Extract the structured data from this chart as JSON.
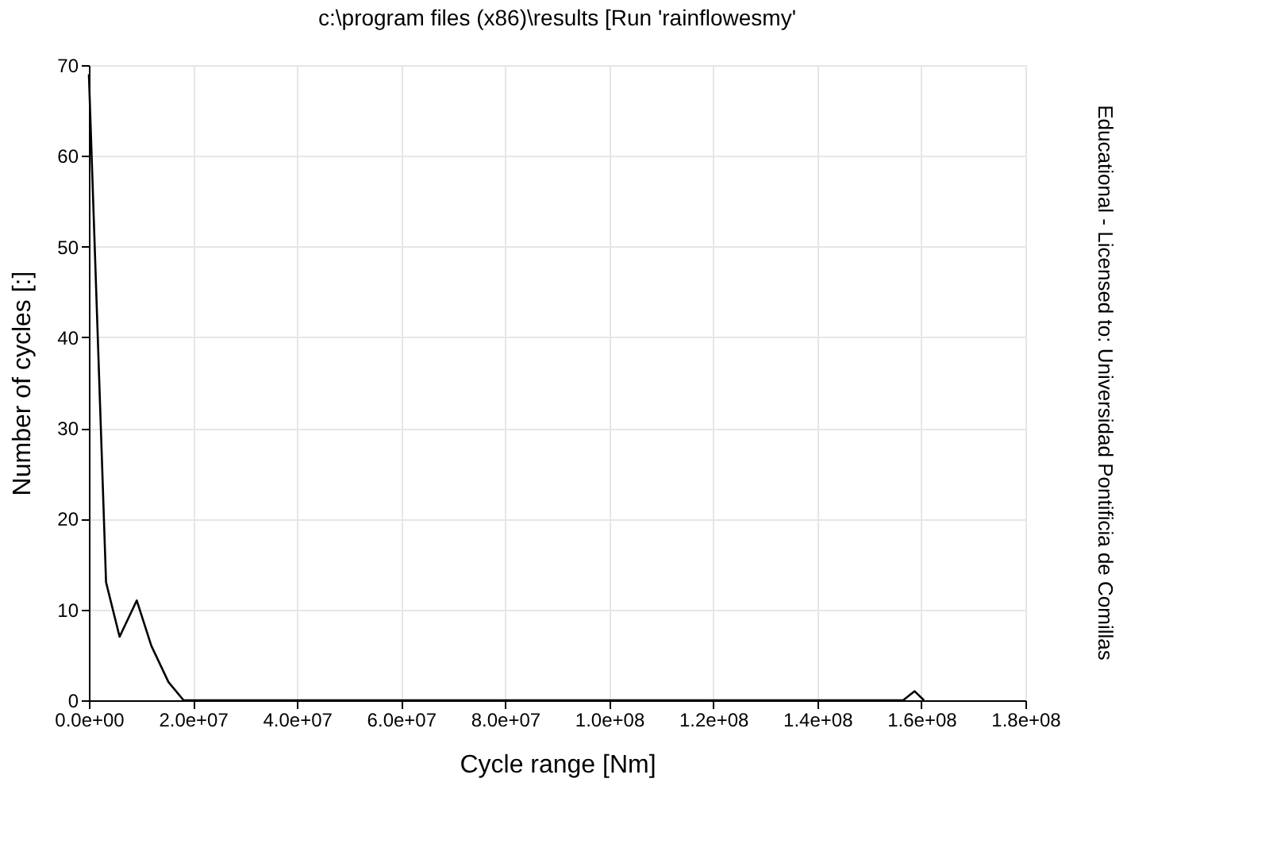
{
  "chart_data": {
    "type": "line",
    "title": "c:\\program files (x86)\\results [Run 'rainflowesmy'",
    "xlabel": "Cycle range [Nm]",
    "ylabel": "Number of cycles  [:]",
    "annotations": [
      "Educational - Licensed to: Universidad Pontificia de Comillas"
    ],
    "series": [
      {
        "color": "#000000",
        "x": [
          0,
          3300000,
          5900000,
          9200000,
          12000000,
          15300000,
          18200000,
          156500000,
          158700000,
          160500000
        ],
        "values": [
          69,
          13,
          7,
          11,
          6,
          2,
          0,
          0,
          1,
          0
        ]
      }
    ],
    "xlim": [
      0,
      180000000
    ],
    "ylim": [
      0,
      70
    ],
    "xticks": [
      {
        "value": 0,
        "label": "0.0e+00"
      },
      {
        "value": 20000000,
        "label": "2.0e+07"
      },
      {
        "value": 40000000,
        "label": "4.0e+07"
      },
      {
        "value": 60000000,
        "label": "6.0e+07"
      },
      {
        "value": 80000000,
        "label": "8.0e+07"
      },
      {
        "value": 100000000,
        "label": "1.0e+08"
      },
      {
        "value": 120000000,
        "label": "1.2e+08"
      },
      {
        "value": 140000000,
        "label": "1.4e+08"
      },
      {
        "value": 160000000,
        "label": "1.6e+08"
      },
      {
        "value": 180000000,
        "label": "1.8e+08"
      }
    ],
    "yticks": [
      0,
      10,
      20,
      30,
      40,
      50,
      60,
      70
    ],
    "grid": true,
    "marker": "none",
    "line_style": "solid"
  }
}
